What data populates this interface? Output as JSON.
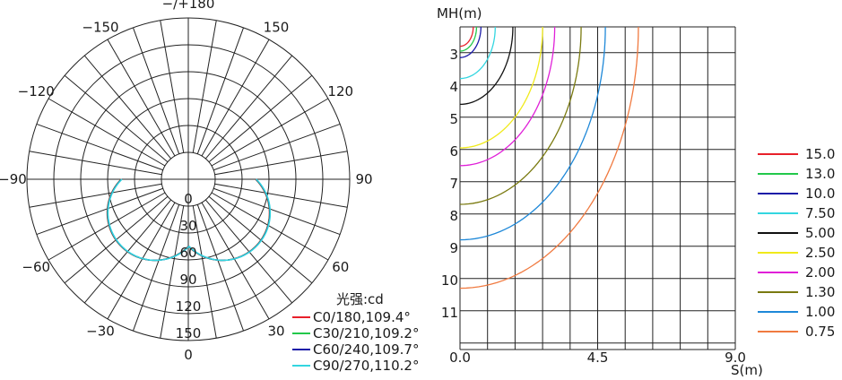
{
  "chart_data": [
    {
      "type": "polar",
      "angle_labels": [
        {
          "deg": 180,
          "text": "−/+180"
        },
        {
          "deg": -150,
          "text": "−150"
        },
        {
          "deg": 150,
          "text": "150"
        },
        {
          "deg": -120,
          "text": "−120"
        },
        {
          "deg": 120,
          "text": "120"
        },
        {
          "deg": -90,
          "text": "−90"
        },
        {
          "deg": 90,
          "text": "90"
        },
        {
          "deg": -60,
          "text": "−60"
        },
        {
          "deg": 60,
          "text": "60"
        },
        {
          "deg": -30,
          "text": "−30"
        },
        {
          "deg": 30,
          "text": "30"
        },
        {
          "deg": 0,
          "text": "0"
        }
      ],
      "radial_labels": [
        {
          "value": 0,
          "text": "0"
        },
        {
          "value": 30,
          "text": "30"
        },
        {
          "value": 60,
          "text": "60"
        },
        {
          "value": 90,
          "text": "90"
        },
        {
          "value": 120,
          "text": "120"
        },
        {
          "value": 150,
          "text": "150"
        }
      ],
      "rmax": 150,
      "angular_grid_step_deg": 10,
      "unit_label": "光强:cd",
      "series": [
        {
          "name": "C0/180,109.4°",
          "color": "#e8202a",
          "peak": 106
        },
        {
          "name": "C30/210,109.2°",
          "color": "#22c84a",
          "peak": 106
        },
        {
          "name": "C60/240,109.7°",
          "color": "#1a1aa8",
          "peak": 106
        },
        {
          "name": "C90/270,110.2°",
          "color": "#33d6e0",
          "peak": 106
        }
      ],
      "curve_model": "r = peak * cos(angle - 45deg) for angle in [-90deg, 90deg] mirrored about 0"
    },
    {
      "type": "isolux",
      "x_label": "S(m)",
      "y_label": "MH(m)",
      "x_tick_labels": [
        {
          "value": 0,
          "text": "0.0"
        },
        {
          "value": 4.5,
          "text": "4.5"
        },
        {
          "value": 9,
          "text": "9.0"
        }
      ],
      "y_tick_labels": [
        3,
        4,
        5,
        6,
        7,
        8,
        9,
        10,
        11
      ],
      "xlim": [
        0,
        9
      ],
      "ylim": [
        2.2,
        12.2
      ],
      "grid_x_step": 0.9,
      "grid_y_step": 1,
      "series": [
        {
          "name": "15.0",
          "color": "#e8202a",
          "radius": 0.6
        },
        {
          "name": "13.0",
          "color": "#22c84a",
          "radius": 0.75
        },
        {
          "name": "10.0",
          "color": "#1a1aa8",
          "radius": 0.95
        },
        {
          "name": "7.50",
          "color": "#33d6e0",
          "radius": 1.6
        },
        {
          "name": "5.00",
          "color": "#111111",
          "radius": 2.4
        },
        {
          "name": "2.50",
          "color": "#f0ea1a",
          "radius": 3.75
        },
        {
          "name": "2.00",
          "color": "#e020d8",
          "radius": 4.3
        },
        {
          "name": "1.30",
          "color": "#7a7a10",
          "radius": 5.5
        },
        {
          "name": "1.00",
          "color": "#1e88d8",
          "radius": 6.6
        },
        {
          "name": "0.75",
          "color": "#f07a40",
          "radius": 8.1
        }
      ]
    }
  ]
}
